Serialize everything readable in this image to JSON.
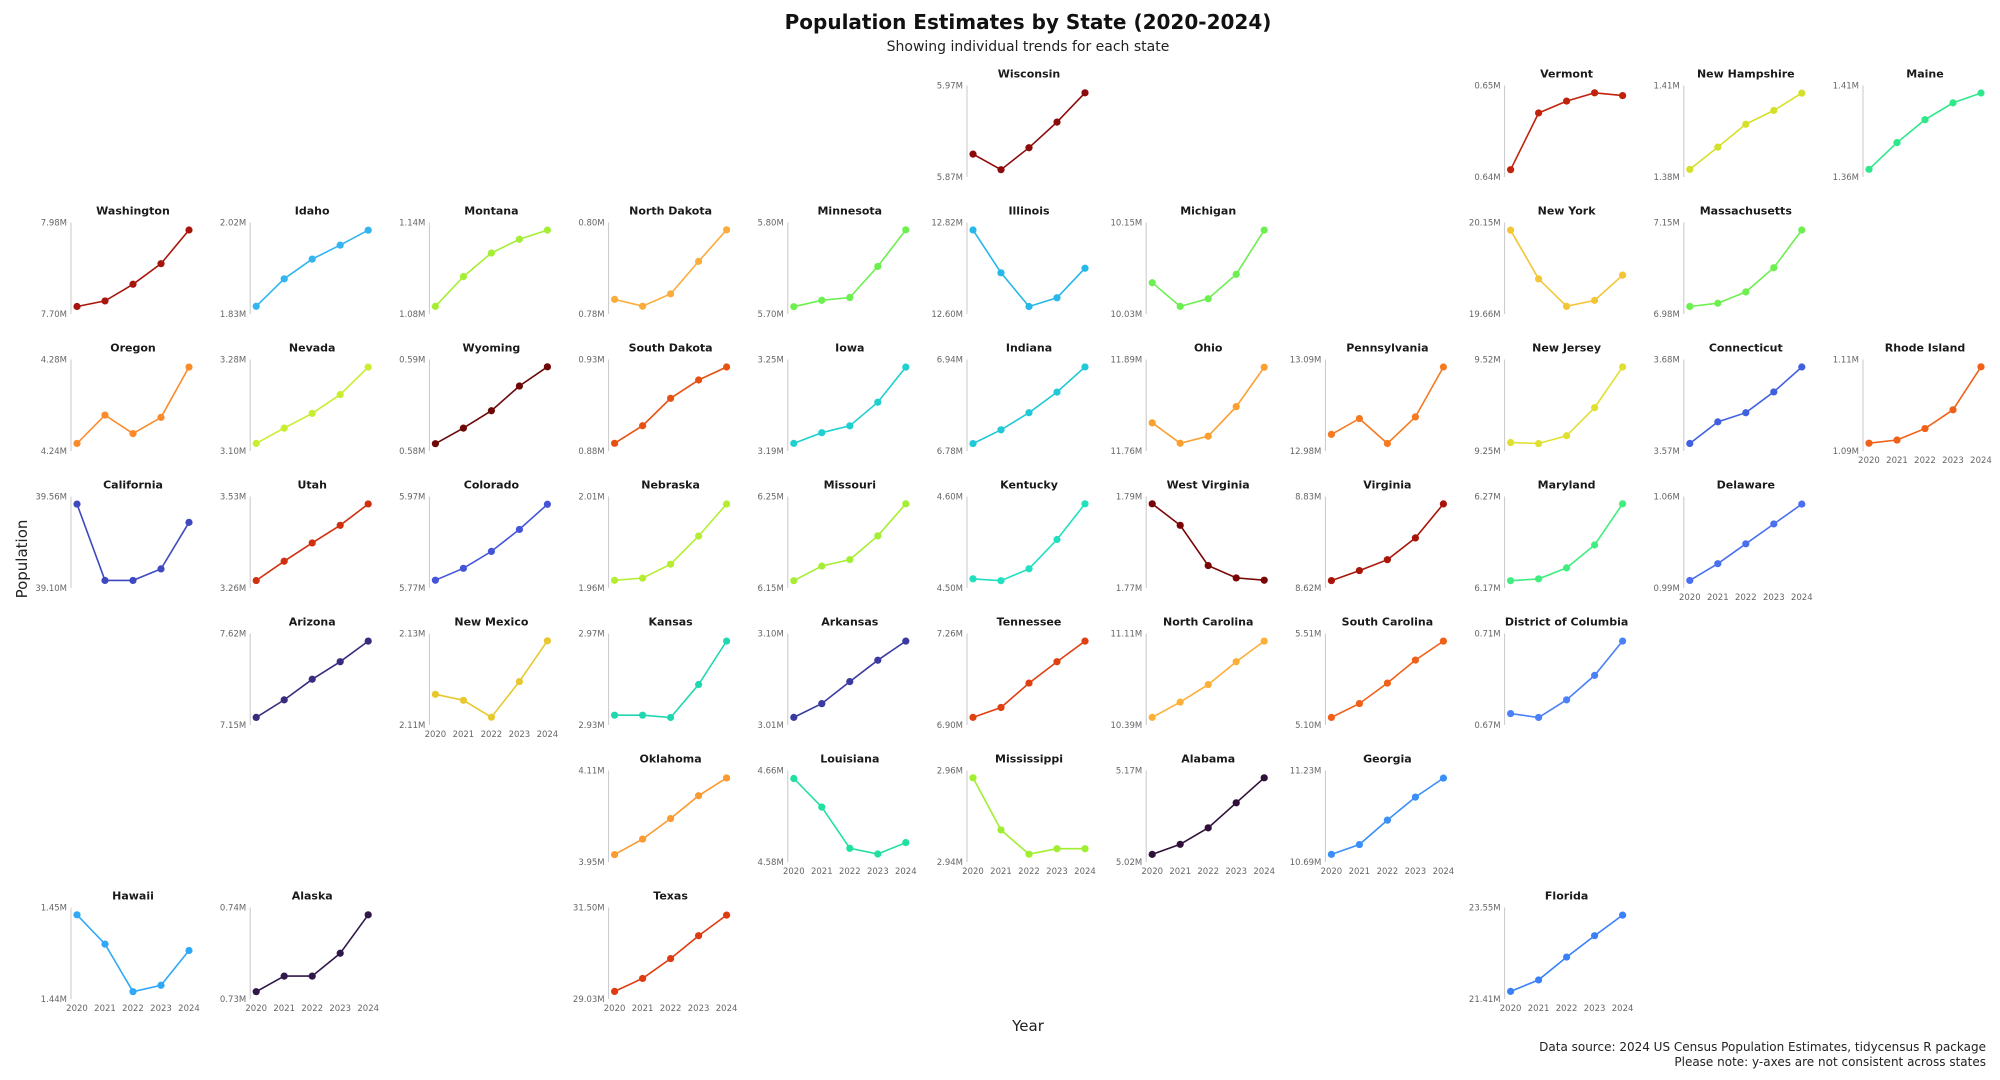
{
  "chart_data": {
    "type": "line",
    "title": "Population Estimates by State (2020-2024)",
    "subtitle": "Showing individual trends for each state",
    "xlabel": "Year",
    "ylabel": "Population",
    "x": [
      "2020",
      "2021",
      "2022",
      "2023",
      "2024"
    ],
    "caption": [
      "Data source: 2024 US Census Population Estimates, tidycensus R package",
      "Please note: y-axes are not consistent across states"
    ],
    "units": "millions",
    "grid": false,
    "panels": [
      {
        "name": "Wisconsin",
        "color": "#8b0a0a",
        "ylim": [
          5.87,
          5.97
        ],
        "ticks": [
          "5.87M",
          "5.97M"
        ],
        "values": [
          5.895,
          5.878,
          5.902,
          5.93,
          5.962
        ]
      },
      {
        "name": "Vermont",
        "color": "#c0220c",
        "ylim": [
          0.64,
          0.65
        ],
        "ticks": [
          "0.64M",
          "0.65M"
        ],
        "values": [
          0.6408,
          0.647,
          0.6483,
          0.6492,
          0.6489
        ]
      },
      {
        "name": "New Hampshire",
        "color": "#d4e02a",
        "ylim": [
          1.38,
          1.41
        ],
        "ticks": [
          "1.38M",
          "1.41M"
        ],
        "values": [
          1.3825,
          1.3898,
          1.3973,
          1.4018,
          1.4075
        ]
      },
      {
        "name": "Maine",
        "color": "#2ee88a",
        "ylim": [
          1.36,
          1.41
        ],
        "ticks": [
          "1.36M",
          "1.41M"
        ],
        "values": [
          1.3642,
          1.3788,
          1.3913,
          1.4005,
          1.4059
        ]
      },
      {
        "name": "Washington",
        "color": "#a8150c",
        "ylim": [
          7.7,
          7.98
        ],
        "ticks": [
          "7.70M",
          "7.98M"
        ],
        "values": [
          7.723,
          7.74,
          7.791,
          7.854,
          7.957
        ]
      },
      {
        "name": "Idaho",
        "color": "#33b5f0",
        "ylim": [
          1.83,
          2.02
        ],
        "ticks": [
          "1.83M",
          "2.02M"
        ],
        "values": [
          1.846,
          1.903,
          1.944,
          1.973,
          2.004
        ]
      },
      {
        "name": "Montana",
        "color": "#a5ee35",
        "ylim": [
          1.08,
          1.14
        ],
        "ticks": [
          "1.08M",
          "1.14M"
        ],
        "values": [
          1.085,
          1.1045,
          1.12,
          1.129,
          1.135
        ]
      },
      {
        "name": "North Dakota",
        "color": "#fbac3a",
        "ylim": [
          0.78,
          0.8
        ],
        "ticks": [
          "0.78M",
          "0.80M"
        ],
        "values": [
          0.7832,
          0.7817,
          0.7844,
          0.7915,
          0.7984
        ]
      },
      {
        "name": "Minnesota",
        "color": "#6cf050",
        "ylim": [
          5.7,
          5.8
        ],
        "ticks": [
          "5.70M",
          "5.80M"
        ],
        "values": [
          5.708,
          5.715,
          5.718,
          5.752,
          5.792
        ]
      },
      {
        "name": "Illinois",
        "color": "#25b8e8",
        "ylim": [
          12.6,
          12.82
        ],
        "ticks": [
          "12.60M",
          "12.82M"
        ],
        "values": [
          12.802,
          12.699,
          12.618,
          12.639,
          12.71
        ]
      },
      {
        "name": "Michigan",
        "color": "#6cf050",
        "ylim": [
          10.03,
          10.15
        ],
        "ticks": [
          "10.03M",
          "10.15M"
        ],
        "values": [
          10.071,
          10.04,
          10.05,
          10.082,
          10.14
        ]
      },
      {
        "name": "New York",
        "color": "#f4c534",
        "ylim": [
          19.66,
          20.15
        ],
        "ticks": [
          "19.66M",
          "20.15M"
        ],
        "values": [
          20.109,
          19.848,
          19.701,
          19.733,
          19.868
        ]
      },
      {
        "name": "Massachusetts",
        "color": "#6cf050",
        "ylim": [
          6.98,
          7.15
        ],
        "ticks": [
          "6.98M",
          "7.15M"
        ],
        "values": [
          6.994,
          7.0,
          7.021,
          7.066,
          7.136
        ]
      },
      {
        "name": "Oregon",
        "color": "#fb8a2a",
        "ylim": [
          4.24,
          4.28
        ],
        "ticks": [
          "4.24M",
          "4.28M"
        ],
        "values": [
          4.2433,
          4.2557,
          4.2476,
          4.2547,
          4.2767
        ]
      },
      {
        "name": "Nevada",
        "color": "#c8ee30",
        "ylim": [
          3.1,
          3.28
        ],
        "ticks": [
          "3.10M",
          "3.28M"
        ],
        "values": [
          3.115,
          3.145,
          3.174,
          3.211,
          3.265
        ]
      },
      {
        "name": "Wyoming",
        "color": "#6e0808",
        "ylim": [
          0.58,
          0.59
        ],
        "ticks": [
          "0.58M",
          "0.59M"
        ],
        "values": [
          0.5808,
          0.5825,
          0.5844,
          0.5871,
          0.5892
        ]
      },
      {
        "name": "South Dakota",
        "color": "#e8500f",
        "ylim": [
          0.88,
          0.93
        ],
        "ticks": [
          "0.88M",
          "0.93M"
        ],
        "values": [
          0.8842,
          0.8938,
          0.9088,
          0.9188,
          0.9259
        ]
      },
      {
        "name": "Iowa",
        "color": "#20d0d0",
        "ylim": [
          3.19,
          3.25
        ],
        "ticks": [
          "3.19M",
          "3.25M"
        ],
        "values": [
          3.195,
          3.202,
          3.2065,
          3.222,
          3.245
        ]
      },
      {
        "name": "Indiana",
        "color": "#20c8d8",
        "ylim": [
          6.78,
          6.94
        ],
        "ticks": [
          "6.78M",
          "6.94M"
        ],
        "values": [
          6.793,
          6.817,
          6.847,
          6.883,
          6.927
        ]
      },
      {
        "name": "Ohio",
        "color": "#fba030",
        "ylim": [
          11.76,
          11.89
        ],
        "ticks": [
          "11.76M",
          "11.89M"
        ],
        "values": [
          11.8,
          11.771,
          11.781,
          11.823,
          11.879
        ]
      },
      {
        "name": "Pennsylvania",
        "color": "#f57a20",
        "ylim": [
          12.98,
          13.09
        ],
        "ticks": [
          "12.98M",
          "13.09M"
        ],
        "values": [
          13.0,
          13.019,
          12.989,
          13.021,
          13.081
        ]
      },
      {
        "name": "New Jersey",
        "color": "#e0e030",
        "ylim": [
          9.25,
          9.52
        ],
        "ticks": [
          "9.25M",
          "9.52M"
        ],
        "values": [
          9.275,
          9.272,
          9.295,
          9.378,
          9.498
        ]
      },
      {
        "name": "Connecticut",
        "color": "#4060e0",
        "ylim": [
          3.57,
          3.68
        ],
        "ticks": [
          "3.57M",
          "3.68M"
        ],
        "values": [
          3.579,
          3.605,
          3.616,
          3.641,
          3.671
        ]
      },
      {
        "name": "Rhode Island",
        "color": "#f06018",
        "ylim": [
          1.09,
          1.11
        ],
        "ticks": [
          "1.09M",
          "1.11M"
        ],
        "values": [
          1.0917,
          1.0924,
          1.0949,
          1.099,
          1.1084
        ]
      },
      {
        "name": "California",
        "color": "#3e49c0",
        "ylim": [
          39.1,
          39.56
        ],
        "ticks": [
          "39.10M",
          "39.56M"
        ],
        "values": [
          39.522,
          39.138,
          39.138,
          39.196,
          39.43
        ]
      },
      {
        "name": "Utah",
        "color": "#d03010",
        "ylim": [
          3.26,
          3.53
        ],
        "ticks": [
          "3.26M",
          "3.53M"
        ],
        "values": [
          3.282,
          3.339,
          3.393,
          3.445,
          3.508
        ]
      },
      {
        "name": "Colorado",
        "color": "#4455d8",
        "ylim": [
          5.77,
          5.97
        ],
        "ticks": [
          "5.77M",
          "5.97M"
        ],
        "values": [
          5.787,
          5.813,
          5.85,
          5.898,
          5.953
        ]
      },
      {
        "name": "Nebraska",
        "color": "#b5ee30",
        "ylim": [
          1.96,
          2.01
        ],
        "ticks": [
          "1.96M",
          "2.01M"
        ],
        "values": [
          1.9642,
          1.9654,
          1.973,
          1.9884,
          2.0059
        ]
      },
      {
        "name": "Missouri",
        "color": "#a5ee35",
        "ylim": [
          6.15,
          6.25
        ],
        "ticks": [
          "6.15M",
          "6.25M"
        ],
        "values": [
          6.158,
          6.174,
          6.181,
          6.207,
          6.242
        ]
      },
      {
        "name": "Kentucky",
        "color": "#20e0c0",
        "ylim": [
          4.5,
          4.6
        ],
        "ticks": [
          "4.50M",
          "4.60M"
        ],
        "values": [
          4.51,
          4.508,
          4.521,
          4.553,
          4.592
        ]
      },
      {
        "name": "West Virginia",
        "color": "#7a0505",
        "ylim": [
          1.77,
          1.79
        ],
        "ticks": [
          "1.77M",
          "1.79M"
        ],
        "values": [
          1.7884,
          1.7837,
          1.7749,
          1.7722,
          1.7717
        ]
      },
      {
        "name": "Virginia",
        "color": "#a81508",
        "ylim": [
          8.62,
          8.83
        ],
        "ticks": [
          "8.62M",
          "8.83M"
        ],
        "values": [
          8.637,
          8.66,
          8.685,
          8.735,
          8.813
        ]
      },
      {
        "name": "Maryland",
        "color": "#40ee80",
        "ylim": [
          6.17,
          6.27
        ],
        "ticks": [
          "6.17M",
          "6.27M"
        ],
        "values": [
          6.178,
          6.18,
          6.192,
          6.217,
          6.262
        ]
      },
      {
        "name": "Delaware",
        "color": "#4a70f0",
        "ylim": [
          0.99,
          1.06
        ],
        "ticks": [
          "0.99M",
          "1.06M"
        ],
        "values": [
          0.9958,
          1.0086,
          1.0238,
          1.039,
          1.0542
        ]
      },
      {
        "name": "Arizona",
        "color": "#3a2a80",
        "ylim": [
          7.15,
          7.62
        ],
        "ticks": [
          "7.15M",
          "7.62M"
        ],
        "values": [
          7.189,
          7.279,
          7.385,
          7.475,
          7.581
        ]
      },
      {
        "name": "New Mexico",
        "color": "#e8c830",
        "ylim": [
          2.11,
          2.13
        ],
        "ticks": [
          "2.11M",
          "2.13M"
        ],
        "values": [
          2.1167,
          2.1154,
          2.1117,
          2.1195,
          2.1284
        ]
      },
      {
        "name": "Kansas",
        "color": "#20d8b0",
        "ylim": [
          2.93,
          2.97
        ],
        "ticks": [
          "2.93M",
          "2.97M"
        ],
        "values": [
          2.9343,
          2.9343,
          2.9333,
          2.9477,
          2.9667
        ]
      },
      {
        "name": "Arkansas",
        "color": "#3a3aa0",
        "ylim": [
          3.01,
          3.1
        ],
        "ticks": [
          "3.01M",
          "3.10M"
        ],
        "values": [
          3.0175,
          3.031,
          3.0527,
          3.0737,
          3.0925
        ]
      },
      {
        "name": "Tennessee",
        "color": "#e04010",
        "ylim": [
          6.9,
          7.26
        ],
        "ticks": [
          "6.90M",
          "7.26M"
        ],
        "values": [
          6.93,
          6.969,
          7.065,
          7.149,
          7.23
        ]
      },
      {
        "name": "North Carolina",
        "color": "#fcb03a",
        "ylim": [
          10.39,
          11.11
        ],
        "ticks": [
          "10.39M",
          "11.11M"
        ],
        "values": [
          10.45,
          10.57,
          10.708,
          10.888,
          11.05
        ]
      },
      {
        "name": "South Carolina",
        "color": "#f06018",
        "ylim": [
          5.1,
          5.51
        ],
        "ticks": [
          "5.10M",
          "5.51M"
        ],
        "values": [
          5.134,
          5.196,
          5.288,
          5.391,
          5.476
        ]
      },
      {
        "name": "District of Columbia",
        "color": "#4a80f8",
        "ylim": [
          0.67,
          0.71
        ],
        "ticks": [
          "0.67M",
          "0.71M"
        ],
        "values": [
          0.675,
          0.6733,
          0.681,
          0.6917,
          0.7067
        ]
      },
      {
        "name": "Oklahoma",
        "color": "#fb9a30",
        "ylim": [
          3.95,
          4.11
        ],
        "ticks": [
          "3.95M",
          "4.11M"
        ],
        "values": [
          3.963,
          3.99,
          4.026,
          4.066,
          4.097
        ]
      },
      {
        "name": "Louisiana",
        "color": "#20e0a0",
        "ylim": [
          4.58,
          4.66
        ],
        "ticks": [
          "4.58M",
          "4.66M"
        ],
        "values": [
          4.653,
          4.628,
          4.592,
          4.587,
          4.597
        ]
      },
      {
        "name": "Mississippi",
        "color": "#a0ee30",
        "ylim": [
          2.94,
          2.96
        ],
        "ticks": [
          "2.94M",
          "2.96M"
        ],
        "values": [
          2.9584,
          2.947,
          2.9417,
          2.9429,
          2.9429
        ]
      },
      {
        "name": "Alabama",
        "color": "#30103a",
        "ylim": [
          5.02,
          5.17
        ],
        "ticks": [
          "5.02M",
          "5.17M"
        ],
        "values": [
          5.0325,
          5.049,
          5.076,
          5.117,
          5.158
        ]
      },
      {
        "name": "Georgia",
        "color": "#3a90f8",
        "ylim": [
          10.69,
          11.23
        ],
        "ticks": [
          "10.69M",
          "11.23M"
        ],
        "values": [
          10.735,
          10.793,
          10.937,
          11.073,
          11.185
        ]
      },
      {
        "name": "Hawaii",
        "color": "#30a8f8",
        "ylim": [
          1.44,
          1.45
        ],
        "ticks": [
          "1.44M",
          "1.45M"
        ],
        "values": [
          1.4492,
          1.446,
          1.4408,
          1.4415,
          1.4453
        ]
      },
      {
        "name": "Alaska",
        "color": "#30184a",
        "ylim": [
          0.73,
          0.74
        ],
        "ticks": [
          "0.73M",
          "0.74M"
        ],
        "values": [
          0.7308,
          0.7325,
          0.7325,
          0.735,
          0.7392
        ]
      },
      {
        "name": "Texas",
        "color": "#e03a10",
        "ylim": [
          29.03,
          31.5
        ],
        "ticks": [
          "29.03M",
          "31.50M"
        ],
        "values": [
          29.235,
          29.585,
          30.121,
          30.739,
          31.295
        ]
      },
      {
        "name": "Florida",
        "color": "#3a80f8",
        "ylim": [
          21.41,
          23.55
        ],
        "ticks": [
          "21.41M",
          "23.55M"
        ],
        "values": [
          21.588,
          21.856,
          22.391,
          22.891,
          23.372
        ]
      }
    ]
  }
}
